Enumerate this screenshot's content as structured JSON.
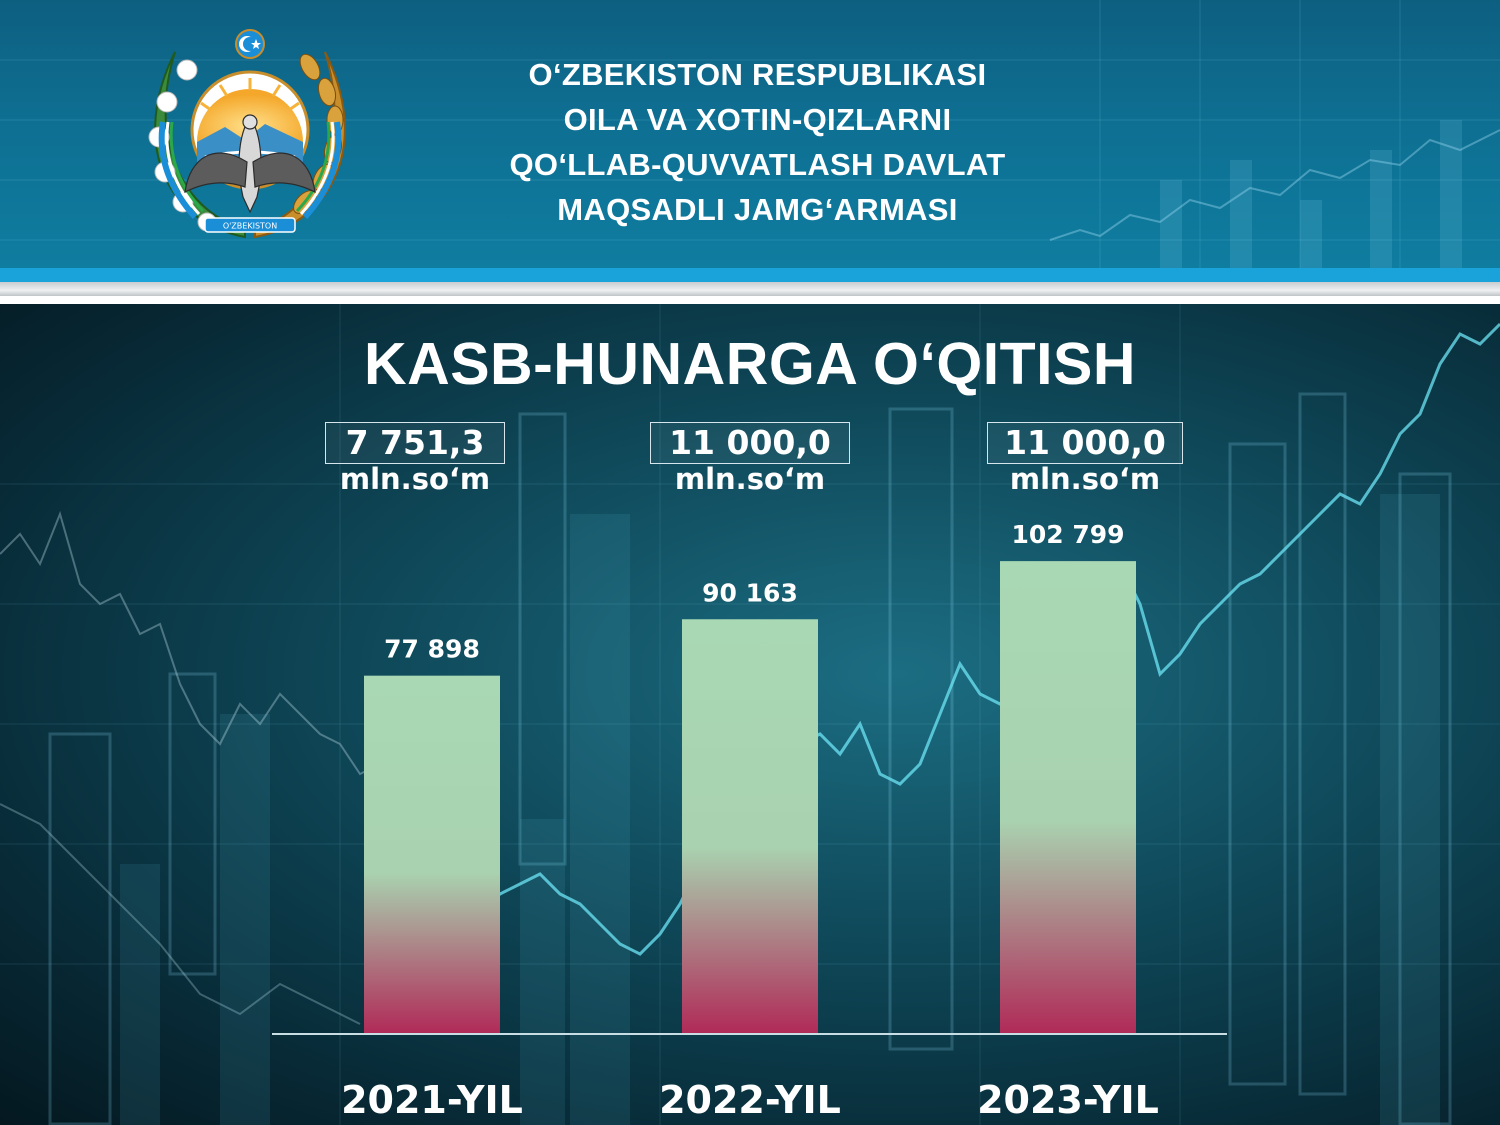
{
  "header": {
    "emblem_text": "O'ZBEKISTON",
    "org_lines": [
      "O‘ZBEKISTON RESPUBLIKASI",
      "OILA VA XOTIN-QIZLARNI",
      "QO‘LLAB-QUVVATLASH DAVLAT",
      "MAQSADLI JAMG‘ARMASI"
    ]
  },
  "budgets": [
    {
      "amount": "7 751,3",
      "unit": "mln.so‘m"
    },
    {
      "amount": "11 000,0",
      "unit": "mln.so‘m"
    },
    {
      "amount": "11 000,0",
      "unit": "mln.so‘m"
    }
  ],
  "colors": {
    "bar_top": "#a9d8b4",
    "bar_bottom": "#b02a58",
    "header_bg": "#0e6f92",
    "stripe": "#1aa3da"
  },
  "chart_data": {
    "type": "bar",
    "title": "KASB-HUNARGA O‘QITISH",
    "categories": [
      "2021-YIL",
      "2022-YIL",
      "2023-YIL"
    ],
    "values": [
      77898,
      90163,
      102799
    ],
    "value_labels": [
      "77 898",
      "90 163",
      "102 799"
    ],
    "ylim": [
      0,
      125000
    ],
    "grid": false,
    "legend": "none"
  }
}
